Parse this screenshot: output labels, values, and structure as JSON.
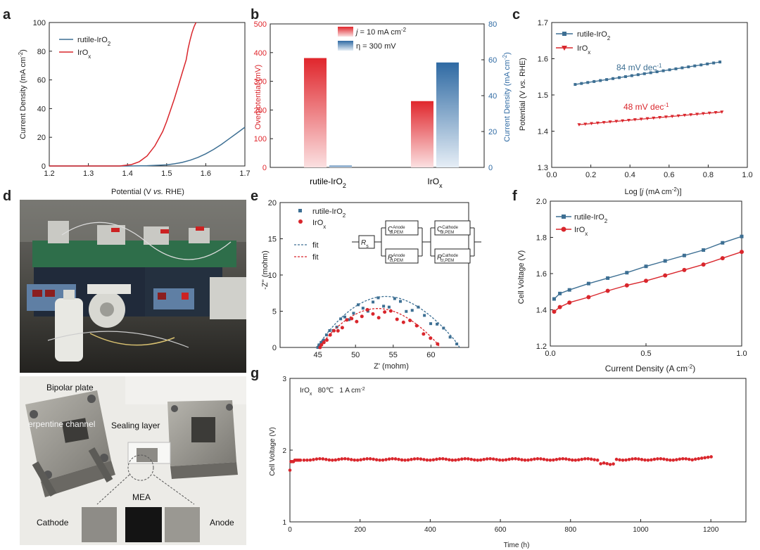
{
  "colors": {
    "rutile": "#3d6f93",
    "irox": "#d9262c",
    "blue_bar": "#2f6aa3",
    "red_bar": "#e0262c"
  },
  "panels": {
    "a": {
      "letter": "a"
    },
    "b": {
      "letter": "b"
    },
    "c": {
      "letter": "c"
    },
    "d": {
      "letter": "d"
    },
    "e": {
      "letter": "e"
    },
    "f": {
      "letter": "f"
    },
    "g": {
      "letter": "g"
    }
  },
  "photo_labels": {
    "bipolar_plate": "Bipolar plate",
    "serpentine": "erpentine channel",
    "sealing": "Sealing layer",
    "mea": "MEA",
    "cathode": "Cathode",
    "anode": "Anode"
  },
  "chart_data": [
    {
      "id": "a",
      "type": "line",
      "xlabel_main": "Potential (V ",
      "xlabel_italic": "vs.",
      "xlabel_end": " RHE)",
      "ylabel": "Current Density (mA cm",
      "ylabel_sup": "-2",
      "ylabel_end": ")",
      "xlim": [
        1.2,
        1.7
      ],
      "ylim": [
        0,
        100
      ],
      "xticks": [
        "1.2",
        "1.3",
        "1.4",
        "1.5",
        "1.6",
        "1.7"
      ],
      "yticks": [
        "0",
        "20",
        "40",
        "60",
        "80",
        "100"
      ],
      "legend": [
        {
          "name": "rutile-IrO",
          "sub": "2"
        },
        {
          "name": "IrO",
          "sub": "x"
        }
      ],
      "series": [
        {
          "name": "rutile-IrO2",
          "x": [
            1.2,
            1.4,
            1.45,
            1.5,
            1.52,
            1.54,
            1.56,
            1.58,
            1.6,
            1.62,
            1.64,
            1.66,
            1.68,
            1.7
          ],
          "y": [
            0,
            0,
            0.2,
            0.8,
            1.5,
            2.5,
            4,
            6,
            8.5,
            11.5,
            15,
            19,
            23,
            27
          ]
        },
        {
          "name": "IrOx",
          "x": [
            1.2,
            1.38,
            1.41,
            1.43,
            1.45,
            1.47,
            1.49,
            1.5,
            1.51,
            1.52,
            1.53,
            1.54,
            1.55,
            1.555,
            1.56,
            1.565,
            1.57,
            1.575
          ],
          "y": [
            0,
            0,
            1,
            3,
            7,
            14,
            24,
            31,
            39,
            47,
            56,
            65,
            74,
            82,
            88,
            93,
            97,
            100
          ]
        }
      ]
    },
    {
      "id": "b",
      "type": "bar",
      "categories": [
        {
          "name": "rutile-IrO",
          "sub": "2"
        },
        {
          "name": "IrO",
          "sub": "x"
        }
      ],
      "left_axis": {
        "label": "Overpotential (mV)",
        "ylim": [
          0,
          500
        ],
        "ticks": [
          "0",
          "100",
          "200",
          "300",
          "400",
          "500"
        ]
      },
      "right_axis": {
        "label": "Current Density (mA cm",
        "label_sup": "-2",
        "label_end": ")",
        "ylim": [
          0,
          80
        ],
        "ticks": [
          "0",
          "20",
          "40",
          "60",
          "80"
        ]
      },
      "legend": [
        {
          "pre": "",
          "italic": "j",
          "post": " = 10 mA cm",
          "sup": "-2"
        },
        {
          "pre": "η = 300 mV",
          "italic": "",
          "post": "",
          "sup": ""
        }
      ],
      "series": [
        {
          "name": "Overpotential at j = 10 mA cm-2",
          "axis": "left",
          "values": [
            381,
            231
          ]
        },
        {
          "name": "Current Density at η = 300 mV",
          "axis": "right",
          "values": [
            1,
            58.5
          ]
        }
      ]
    },
    {
      "id": "c",
      "type": "scatter",
      "xlabel": "Log [",
      "xlabel_italic": "j",
      "xlabel_end": " (mA cm",
      "xlabel_sup": "-2",
      "xlabel_close": ")]",
      "ylabel": "Potential (V ",
      "ylabel_italic": "vs.",
      "ylabel_end": " RHE)",
      "xlim": [
        0.0,
        1.0
      ],
      "ylim": [
        1.3,
        1.7
      ],
      "xticks": [
        "0.0",
        "0.2",
        "0.4",
        "0.6",
        "0.8",
        "1.0"
      ],
      "yticks": [
        "1.3",
        "1.4",
        "1.5",
        "1.6",
        "1.7"
      ],
      "legend": [
        {
          "name": "rutile-IrO",
          "sub": "2"
        },
        {
          "name": "IrO",
          "sub": "x"
        }
      ],
      "annotations": [
        {
          "text": "84 mV dec",
          "sup": "-1"
        },
        {
          "text": "48 mV dec",
          "sup": "-1"
        }
      ],
      "series": [
        {
          "name": "rutile-IrO2",
          "x_start": 0.12,
          "x_end": 0.86,
          "y_start": 1.529,
          "y_end": 1.591
        },
        {
          "name": "IrOx",
          "x_start": 0.14,
          "x_end": 0.87,
          "y_start": 1.418,
          "y_end": 1.453
        }
      ]
    },
    {
      "id": "e",
      "type": "scatter",
      "xlabel": "Z' (mohm)",
      "ylabel": "-Z'' (mohm)",
      "xlim": [
        40,
        65
      ],
      "ylim": [
        0,
        20
      ],
      "xticks": [
        "45",
        "50",
        "55",
        "60"
      ],
      "yticks": [
        "0",
        "5",
        "10",
        "15",
        "20"
      ],
      "legend": [
        {
          "name": "rutile-IrO",
          "sub": "2"
        },
        {
          "name": "IrO",
          "sub": "x"
        },
        {
          "name": "fit",
          "sub": ""
        },
        {
          "name": "fit",
          "sub": ""
        }
      ],
      "circuit": {
        "rs": "R",
        "rs_sub": "s",
        "c_anode": "C",
        "c_anode_sub": "dl,PEM",
        "c_anode_sup": "Anode",
        "r_anode": "R",
        "r_anode_sub": "ct,PEM",
        "r_anode_sup": "Anode",
        "c_cathode": "C",
        "c_cathode_sub": "dl,PEM",
        "c_cathode_sup": "Cathode",
        "r_cathode": "R",
        "r_cathode_sub": "ct,PEM",
        "r_cathode_sup": "Cathode"
      },
      "series": [
        {
          "name": "rutile-IrO2",
          "x0": 45.0,
          "x1": 63.8,
          "peak": 7.6,
          "dots": 30
        },
        {
          "name": "IrOx",
          "x0": 45.3,
          "x1": 61.2,
          "peak": 5.8,
          "dots": 24
        }
      ]
    },
    {
      "id": "f",
      "type": "line",
      "xlabel": "Current Density (A cm",
      "xlabel_sup": "-2",
      "xlabel_end": ")",
      "ylabel": "Cell Voltage (V)",
      "xlim": [
        0,
        1.0
      ],
      "ylim": [
        1.2,
        2.0
      ],
      "xticks": [
        "0.0",
        "0.5",
        "1.0"
      ],
      "yticks": [
        "1.2",
        "1.4",
        "1.6",
        "1.8",
        "2.0"
      ],
      "legend": [
        {
          "name": "rutile-IrO",
          "sub": "2"
        },
        {
          "name": "IrO",
          "sub": "x"
        }
      ],
      "series": [
        {
          "name": "rutile-IrO2",
          "x": [
            0.02,
            0.05,
            0.1,
            0.2,
            0.3,
            0.4,
            0.5,
            0.6,
            0.7,
            0.8,
            0.9,
            1.0
          ],
          "y": [
            1.46,
            1.49,
            1.51,
            1.545,
            1.575,
            1.605,
            1.64,
            1.67,
            1.7,
            1.73,
            1.77,
            1.805
          ]
        },
        {
          "name": "IrOx",
          "x": [
            0.02,
            0.05,
            0.1,
            0.2,
            0.3,
            0.4,
            0.5,
            0.6,
            0.7,
            0.8,
            0.9,
            1.0
          ],
          "y": [
            1.39,
            1.415,
            1.44,
            1.47,
            1.505,
            1.535,
            1.56,
            1.59,
            1.62,
            1.65,
            1.685,
            1.72
          ]
        }
      ]
    },
    {
      "id": "g",
      "type": "scatter",
      "annotation_pre": "IrO",
      "annotation_sub": "x",
      "annotation_mid": "   80℃   1 A cm",
      "annotation_sup": "-2",
      "xlabel": "Time (h)",
      "ylabel": "Cell Voltage (V)",
      "xlim": [
        0,
        1300
      ],
      "ylim": [
        1,
        3
      ],
      "xticks": [
        "0",
        "200",
        "400",
        "600",
        "800",
        "1000",
        "1200"
      ],
      "yticks": [
        "1",
        "2",
        "3"
      ],
      "series": [
        {
          "name": "IrOx",
          "x_start": 0,
          "x_end": 1205,
          "base": 1.87,
          "features": [
            {
              "x": 0,
              "y": 1.72
            },
            {
              "x": 5,
              "y": 1.84
            },
            {
              "x": 30,
              "y": 1.86
            },
            {
              "x": 900,
              "y": 1.81
            },
            {
              "x": 910,
              "y": 1.8
            },
            {
              "x": 1205,
              "y": 1.91
            }
          ]
        }
      ]
    }
  ]
}
